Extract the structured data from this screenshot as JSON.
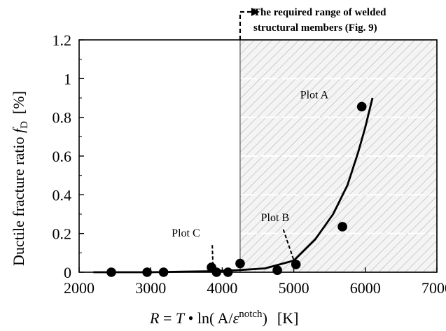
{
  "chart_data": {
    "type": "scatter",
    "xlabel_parts": [
      "R",
      " = ",
      "T",
      " • ",
      "ln( A/",
      "ε",
      "notch",
      ")",
      "[K]"
    ],
    "ylabel_parts": [
      "Ductile fracture ratio ",
      "f",
      "D",
      "[%]"
    ],
    "xlim": [
      2000,
      7000
    ],
    "ylim": [
      0,
      1.2
    ],
    "x_ticks": [
      2000,
      3000,
      4000,
      5000,
      6000,
      7000
    ],
    "y_ticks": [
      0,
      0.2,
      0.4,
      0.6,
      0.8,
      1,
      1.2
    ],
    "x_tick_labels": [
      "2000",
      "3000",
      "4000",
      "5000",
      "6000",
      "7000"
    ],
    "y_tick_labels": [
      "0",
      "0.2",
      "0.4",
      "0.6",
      "0.8",
      "1",
      "1.2"
    ],
    "grid": false,
    "series": [
      {
        "kind": "points",
        "points": [
          {
            "x": 2450,
            "y": 0.0
          },
          {
            "x": 2950,
            "y": 0.0
          },
          {
            "x": 3180,
            "y": 0.0
          },
          {
            "x": 3850,
            "y": 0.025
          },
          {
            "x": 3920,
            "y": 0.0
          },
          {
            "x": 4080,
            "y": 0.0
          },
          {
            "x": 4250,
            "y": 0.045
          },
          {
            "x": 4770,
            "y": 0.01
          },
          {
            "x": 5030,
            "y": 0.04
          },
          {
            "x": 5680,
            "y": 0.235
          },
          {
            "x": 5950,
            "y": 0.855
          }
        ]
      },
      {
        "kind": "curve",
        "x": [
          2200,
          3000,
          3800,
          4200,
          4600,
          5000,
          5300,
          5550,
          5750,
          5900,
          6000,
          6100
        ],
        "y": [
          0.0,
          0.0,
          0.005,
          0.01,
          0.02,
          0.06,
          0.17,
          0.3,
          0.45,
          0.62,
          0.75,
          0.9
        ]
      }
    ],
    "shaded_region": {
      "x_from": 4250,
      "x_to": 7000,
      "y_from": 0,
      "y_to": 1.2
    },
    "annotations": [
      {
        "text": "Plot A",
        "target": {
          "x": 5950,
          "y": 0.855
        }
      },
      {
        "text": "Plot B",
        "target": {
          "x": 5030,
          "y": 0.04
        }
      },
      {
        "text": "Plot C",
        "target": {
          "x": 3900,
          "y": 0.01
        }
      }
    ],
    "range_note": [
      "The required range of welded",
      "structural members (Fig. 9)"
    ]
  }
}
